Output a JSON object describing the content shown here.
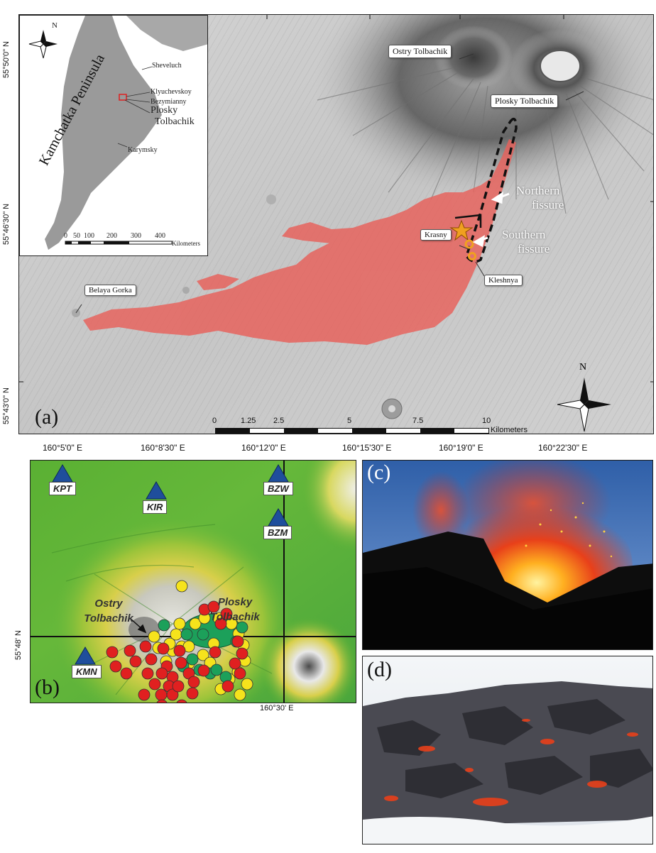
{
  "panel_a": {
    "letter": "(a)",
    "lat_labels": [
      "55°50'0\" N",
      "55°46'30\" N",
      "55°43'0\" N"
    ],
    "lon_labels": [
      "160°5'0\" E",
      "160°8'30\" E",
      "160°12'0\" E",
      "160°15'30\" E",
      "160°19'0\" E",
      "160°22'30\" E"
    ],
    "callouts": {
      "ostry": "Ostry Tolbachik",
      "plosky": "Plosky Tolbachik",
      "krasny": "Krasny",
      "kleshnya": "Kleshnya",
      "belaya": "Belaya Gorka"
    },
    "annotations": {
      "northern_1": "Northern",
      "northern_2": "fissure",
      "southern_1": "Southern",
      "southern_2": "fissure"
    },
    "scalebar": {
      "ticks": [
        "0",
        "1.25",
        "2.5",
        "5",
        "7.5",
        "10"
      ],
      "unit": "Kilometers"
    },
    "north_label": "N",
    "colors": {
      "lava": "#e8605a",
      "fissure": "#111111",
      "vent": "#f0a020"
    }
  },
  "inset": {
    "title": "Kamchatka Peninsula",
    "north_label": "N",
    "volcanoes": {
      "sheveluch": "Sheveluch",
      "klyuchevskoy": "Klyuchevskoy",
      "bezymianny": "Bezymianny",
      "plosky_1": "Plosky",
      "plosky_2": "Tolbachik",
      "karymsky": "Karymsky"
    },
    "scalebar": {
      "ticks": [
        "0",
        "50",
        "100",
        "200",
        "300",
        "400"
      ],
      "unit": "Kilometers"
    }
  },
  "panel_b": {
    "letter": "(b)",
    "stations": [
      "KPT",
      "KIR",
      "BZW",
      "BZM",
      "KMN"
    ],
    "volcano_labels": {
      "ostry_1": "Ostry",
      "ostry_2": "Tolbachik",
      "plosky_1": "Plosky",
      "plosky_2": "Tolbachik"
    },
    "lat_label": "55°48' N",
    "lon_label": "160°30' E",
    "colors": {
      "station": "#1f4e9c",
      "red": "#e02020",
      "yellow": "#f6e31c",
      "green": "#1ca05a"
    }
  },
  "panel_c": {
    "letter": "(c)"
  },
  "panel_d": {
    "letter": "(d)"
  }
}
